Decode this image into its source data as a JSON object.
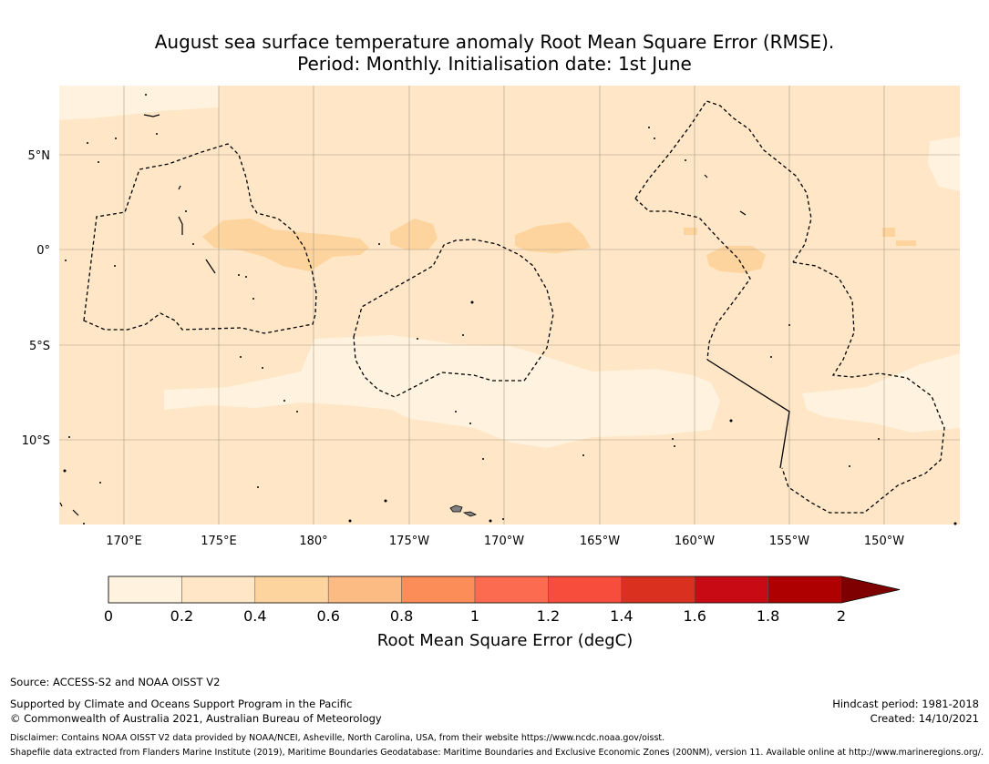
{
  "title_line1": "August sea surface temperature anomaly Root Mean Square Error (RMSE).",
  "title_line2": "Period: Monthly. Initialisation date: 1st June",
  "map": {
    "lon_ticks": [
      "170°E",
      "175°E",
      "180°",
      "175°W",
      "170°W",
      "165°W",
      "160°W",
      "155°W",
      "150°W"
    ],
    "lat_ticks": [
      "5°N",
      "0°",
      "5°S",
      "10°S"
    ],
    "colors": {
      "rmse_0_0.2": "#fff2de",
      "rmse_0.2_0.4": "#fee6c6",
      "rmse_0.4_0.6": "#fdd49e",
      "grid": "#a89a88",
      "eez_line": "#000000",
      "land": "#808080"
    }
  },
  "colorbar": {
    "labels": [
      "0",
      "0.2",
      "0.4",
      "0.6",
      "0.8",
      "1",
      "1.2",
      "1.4",
      "1.6",
      "1.8",
      "2"
    ],
    "colors": [
      "#fff2de",
      "#fee6c6",
      "#fdd49e",
      "#fdbb84",
      "#fc8d59",
      "#fc6a4f",
      "#f64d3c",
      "#d93020",
      "#c80a14",
      "#ae0000",
      "#7f0000"
    ],
    "title": "Root Mean Square Error (degC)"
  },
  "footer": {
    "source": "Source: ACCESS-S2 and NOAA OISST V2",
    "supported": "Supported by Climate and Oceans Support Program in the Pacific",
    "copyright": "© Commonwealth of Australia 2021, Australian Bureau of Meteorology",
    "hindcast": "Hindcast period: 1981-2018",
    "created": "Created: 14/10/2021",
    "disclaimer": "Disclaimer: Contains NOAA OISST V2 data provided by NOAA/NCEI, Asheville, North Carolina, USA, from their website https://www.ncdc.noaa.gov/oisst.",
    "shapefile": "Shapefile data extracted from Flanders Marine Institute (2019), Maritime Boundaries Geodatabase: Maritime Boundaries and Exclusive Economic Zones (200NM), version 11. Available online at http://www.marineregions.org/."
  }
}
